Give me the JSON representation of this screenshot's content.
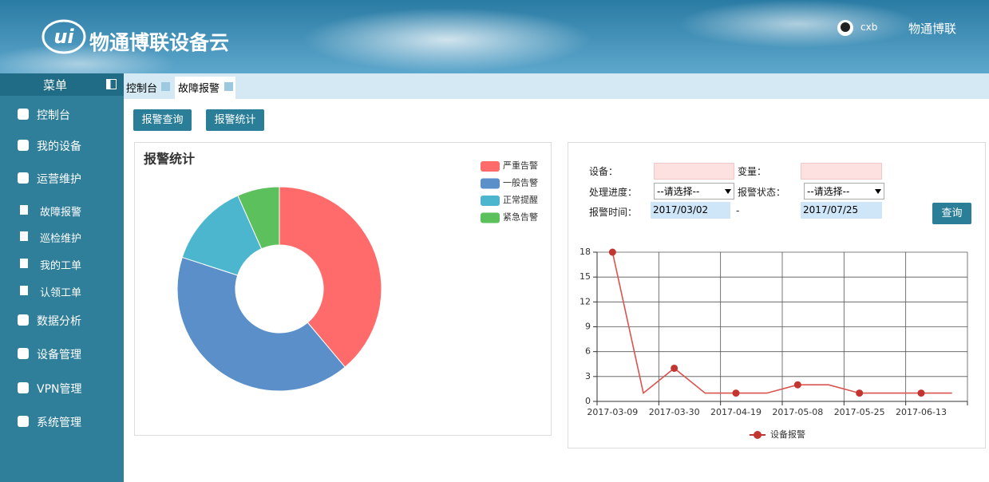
{
  "header": {
    "title": "物通博联设备云",
    "user": "cxb",
    "brand": "物通博联"
  },
  "sidebar": {
    "title": "菜单",
    "items": [
      "控制台",
      "我的设备",
      "运营维护",
      "故障报警",
      "巡检维护",
      "我的工单",
      "认领工单",
      "数据分析",
      "设备管理",
      "VPN管理",
      "系统管理"
    ]
  },
  "tabs": [
    "控制台",
    "故障报警"
  ],
  "buttons": [
    "报警查询",
    "报警统计"
  ],
  "form": {
    "labels": [
      "设备：",
      "变量：",
      "处理进度：",
      "报警状态：",
      "报警时间："
    ],
    "selects": [
      "--请选择--",
      "--请选择--"
    ],
    "start_date": "2017/03/02",
    "separator": "-",
    "end_date": "2017/07/25",
    "submit": "查询"
  },
  "chart_data": [
    {
      "type": "pie",
      "title": "报警统计",
      "categories": [
        "严重告警",
        "一般告警",
        "正常提醒",
        "紧急告警"
      ],
      "values": [
        35,
        37,
        12,
        6
      ],
      "colors": [
        "#ff6b6b",
        "#5b8fc9",
        "#4db6cf",
        "#5cc05c"
      ],
      "donut": true,
      "legend": "top-right"
    },
    {
      "type": "line",
      "categories": [
        "2017-03-09",
        null,
        "2017-03-30",
        null,
        "2017-04-19",
        null,
        "2017-05-08",
        null,
        "2017-05-25",
        null,
        "2017-06-13",
        null
      ],
      "series": [
        {
          "name": "设备报警",
          "color": "#d9534f",
          "values": [
            18,
            1,
            4,
            1,
            1,
            1,
            2,
            2,
            1,
            1,
            1,
            1
          ]
        }
      ],
      "ylim": [
        0,
        18
      ],
      "yticks": [
        0,
        3,
        6,
        9,
        12,
        15,
        18
      ],
      "grid": true,
      "legend": "bottom"
    }
  ]
}
